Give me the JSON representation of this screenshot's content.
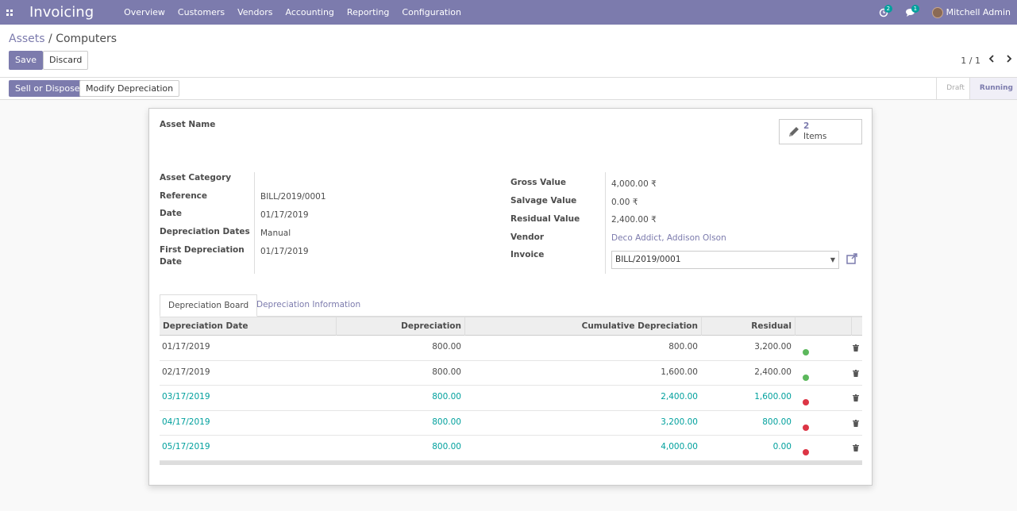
{
  "navbar": {
    "brand": "Invoicing",
    "menu": [
      "Overview",
      "Customers",
      "Vendors",
      "Accounting",
      "Reporting",
      "Configuration"
    ],
    "activity_badge": "2",
    "messages_badge": "1",
    "user_name": "Mitchell Admin"
  },
  "breadcrumb": {
    "parent": "Assets",
    "separator": "/",
    "current": "Computers"
  },
  "actions": {
    "save": "Save",
    "discard": "Discard"
  },
  "pager": {
    "value": "1 / 1"
  },
  "statusbar": {
    "sell_dispose": "Sell or Dispose",
    "modify_depreciation": "Modify Depreciation",
    "stages": [
      "Draft",
      "Running"
    ],
    "active_stage": "Running"
  },
  "sheet": {
    "asset_name_label": "Asset Name",
    "items": {
      "count": "2",
      "label": "Items"
    },
    "left_fields": {
      "category_label": "Asset Category",
      "reference_label": "Reference",
      "reference_value": "BILL/2019/0001",
      "date_label": "Date",
      "date_value": "01/17/2019",
      "dep_dates_label": "Depreciation Dates",
      "dep_dates_value": "Manual",
      "first_dep_label_1": "First Depreciation",
      "first_dep_label_2": "Date",
      "first_dep_value": "01/17/2019"
    },
    "right_fields": {
      "gross_label": "Gross Value",
      "gross_value": "4,000.00 ₹",
      "salvage_label": "Salvage Value",
      "salvage_value": "0.00 ₹",
      "residual_label": "Residual Value",
      "residual_value": "2,400.00 ₹",
      "vendor_label": "Vendor",
      "vendor_value": "Deco Addict, Addison Olson",
      "invoice_label": "Invoice",
      "invoice_value": "BILL/2019/0001"
    },
    "tabs": [
      "Depreciation Board",
      "Depreciation Information"
    ],
    "table": {
      "headers": [
        "Depreciation Date",
        "Depreciation",
        "Cumulative Depreciation",
        "Residual"
      ],
      "rows": [
        {
          "date": "01/17/2019",
          "depreciation": "800.00",
          "cumulative": "800.00",
          "residual": "3,200.00",
          "posted": true
        },
        {
          "date": "02/17/2019",
          "depreciation": "800.00",
          "cumulative": "1,600.00",
          "residual": "2,400.00",
          "posted": true
        },
        {
          "date": "03/17/2019",
          "depreciation": "800.00",
          "cumulative": "2,400.00",
          "residual": "1,600.00",
          "posted": false
        },
        {
          "date": "04/17/2019",
          "depreciation": "800.00",
          "cumulative": "3,200.00",
          "residual": "800.00",
          "posted": false
        },
        {
          "date": "05/17/2019",
          "depreciation": "800.00",
          "cumulative": "4,000.00",
          "residual": "0.00",
          "posted": false
        }
      ]
    }
  },
  "colors": {
    "brand": "#7c7bad",
    "future": "#00a09d",
    "posted": "#5cb85c",
    "unposted": "#dc3545"
  },
  "icons": [
    "apps-icon",
    "activity-clock-icon",
    "chat-icon",
    "pencil-icon",
    "external-link-icon",
    "trash-icon",
    "chevron-left-icon",
    "chevron-right-icon",
    "caret-down-icon"
  ]
}
